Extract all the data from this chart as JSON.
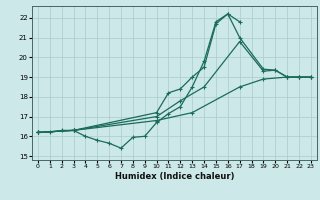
{
  "xlabel": "Humidex (Indice chaleur)",
  "background_color": "#cce8e8",
  "grid_color": "#aacccc",
  "line_color": "#1a6b5a",
  "xlim": [
    -0.5,
    23.5
  ],
  "ylim": [
    14.8,
    22.6
  ],
  "yticks": [
    15,
    16,
    17,
    18,
    19,
    20,
    21,
    22
  ],
  "xticks": [
    0,
    1,
    2,
    3,
    4,
    5,
    6,
    7,
    8,
    9,
    10,
    11,
    12,
    13,
    14,
    15,
    16,
    17,
    18,
    19,
    20,
    21,
    22,
    23
  ],
  "line1_x": [
    0,
    1,
    2,
    3,
    4,
    5,
    6,
    7,
    8,
    9,
    10,
    11,
    12,
    13,
    14,
    15,
    16,
    17
  ],
  "line1_y": [
    16.2,
    16.2,
    16.3,
    16.3,
    16.0,
    15.8,
    15.65,
    15.4,
    15.95,
    16.0,
    16.7,
    17.15,
    17.5,
    18.5,
    19.8,
    21.8,
    22.2,
    21.8
  ],
  "line2_x": [
    0,
    3,
    10,
    11,
    12,
    13,
    14,
    15,
    16,
    17,
    19,
    20,
    21,
    22,
    23
  ],
  "line2_y": [
    16.2,
    16.3,
    17.2,
    18.2,
    18.4,
    19.0,
    19.5,
    21.7,
    22.2,
    21.0,
    19.4,
    19.35,
    19.0,
    19.0,
    19.0
  ],
  "line3_x": [
    0,
    3,
    10,
    12,
    14,
    17,
    19,
    20,
    21,
    22,
    23
  ],
  "line3_y": [
    16.2,
    16.3,
    17.0,
    17.8,
    18.5,
    20.8,
    19.3,
    19.35,
    19.0,
    19.0,
    19.0
  ],
  "line4_x": [
    0,
    3,
    10,
    13,
    17,
    19,
    21,
    22,
    23
  ],
  "line4_y": [
    16.2,
    16.3,
    16.8,
    17.2,
    18.5,
    18.9,
    19.0,
    19.0,
    19.0
  ]
}
